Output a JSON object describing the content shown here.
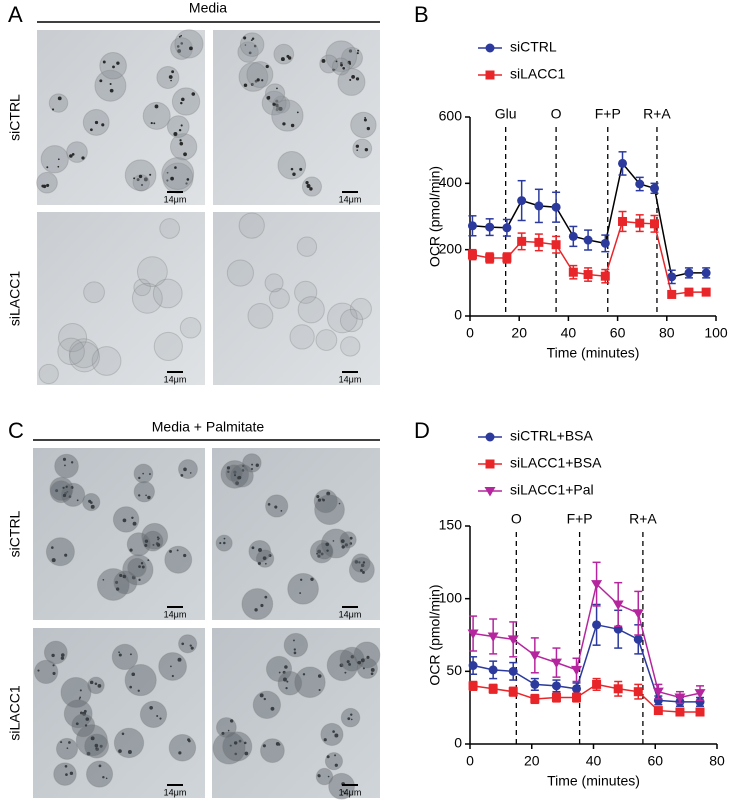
{
  "panel_labels": [
    "A",
    "B",
    "C",
    "D"
  ],
  "image_panels": [
    {
      "title": "Media",
      "rows": [
        "siCTRL",
        "siLACC1"
      ],
      "scale_bar": "14μm"
    },
    {
      "title": "Media + Palmitate",
      "rows": [
        "siCTRL",
        "siLACC1"
      ],
      "scale_bar": "14μm"
    }
  ],
  "chart_data": [
    {
      "type": "line",
      "x_label": "Time (minutes)",
      "y_label": "OCR (pmol/min)",
      "xlim": [
        0,
        100
      ],
      "xticks": [
        0,
        20,
        40,
        60,
        80,
        100
      ],
      "ylim": [
        0,
        600
      ],
      "yticks": [
        0,
        200,
        400,
        600
      ],
      "injections": [
        {
          "x": 14.5,
          "label": "Glu"
        },
        {
          "x": 35,
          "label": "O"
        },
        {
          "x": 56,
          "label": "F+P"
        },
        {
          "x": 76,
          "label": "R+A"
        }
      ],
      "series": [
        {
          "name": "siCTRL",
          "color": "#2b3a9c",
          "line_color": "#000000",
          "marker": "circle",
          "x": [
            1,
            8,
            15,
            21,
            28,
            35,
            42,
            48,
            55,
            62,
            69,
            75,
            82,
            89,
            96
          ],
          "values": [
            272,
            268,
            266,
            348,
            332,
            328,
            240,
            229,
            219,
            460,
            398,
            385,
            118,
            130,
            130
          ],
          "errors": [
            30,
            25,
            25,
            60,
            50,
            45,
            30,
            30,
            25,
            35,
            20,
            15,
            20,
            15,
            15
          ]
        },
        {
          "name": "siLACC1",
          "color": "#e8262a",
          "line_color": "#e8262a",
          "marker": "square",
          "x": [
            1,
            8,
            15,
            21,
            28,
            35,
            42,
            48,
            55,
            62,
            69,
            75,
            82,
            89,
            96
          ],
          "values": [
            185,
            175,
            175,
            225,
            222,
            215,
            132,
            125,
            120,
            285,
            280,
            278,
            65,
            72,
            72
          ],
          "errors": [
            15,
            15,
            15,
            25,
            25,
            25,
            20,
            20,
            20,
            30,
            25,
            25,
            10,
            8,
            8
          ]
        }
      ]
    },
    {
      "type": "line",
      "x_label": "Time (minutes)",
      "y_label": "OCR (pmol/min)",
      "xlim": [
        0,
        80
      ],
      "xticks": [
        0,
        20,
        40,
        60,
        80
      ],
      "ylim": [
        0,
        150
      ],
      "yticks": [
        0,
        50,
        100,
        150
      ],
      "injections": [
        {
          "x": 15,
          "label": "O"
        },
        {
          "x": 35.5,
          "label": "F+P"
        },
        {
          "x": 56,
          "label": "R+A"
        }
      ],
      "series": [
        {
          "name": "siCTRL+BSA",
          "color": "#2b3a9c",
          "line_color": "#2b3a9c",
          "marker": "circle",
          "x": [
            1,
            7.5,
            14,
            21,
            28,
            34.5,
            41,
            48,
            54.5,
            61,
            68,
            74.5
          ],
          "values": [
            54,
            51,
            50,
            41,
            40,
            38,
            82,
            79,
            72,
            30,
            29,
            29
          ],
          "errors": [
            6,
            6,
            6,
            4,
            4,
            4,
            14,
            13,
            10,
            3,
            3,
            3
          ]
        },
        {
          "name": "siLACC1+BSA",
          "color": "#e8262a",
          "line_color": "#e8262a",
          "marker": "square",
          "x": [
            1,
            7.5,
            14,
            21,
            28,
            34.5,
            41,
            48,
            54.5,
            61,
            68,
            74.5
          ],
          "values": [
            40,
            38,
            36,
            31,
            32,
            32,
            41,
            38,
            36,
            23,
            22,
            22
          ],
          "errors": [
            3,
            3,
            3,
            3,
            3,
            3,
            4,
            5,
            5,
            2,
            2,
            2
          ]
        },
        {
          "name": "siLACC1+Pal",
          "color": "#b5269e",
          "line_color": "#b5269e",
          "marker": "triangle-down",
          "x": [
            1,
            7.5,
            14,
            21,
            28,
            34.5,
            41,
            48,
            54.5,
            61,
            68,
            74.5
          ],
          "values": [
            76,
            74,
            72,
            61,
            56,
            51,
            110,
            96,
            90,
            36,
            32,
            35
          ],
          "errors": [
            12,
            12,
            12,
            12,
            10,
            8,
            15,
            15,
            15,
            5,
            4,
            5
          ]
        }
      ]
    }
  ]
}
